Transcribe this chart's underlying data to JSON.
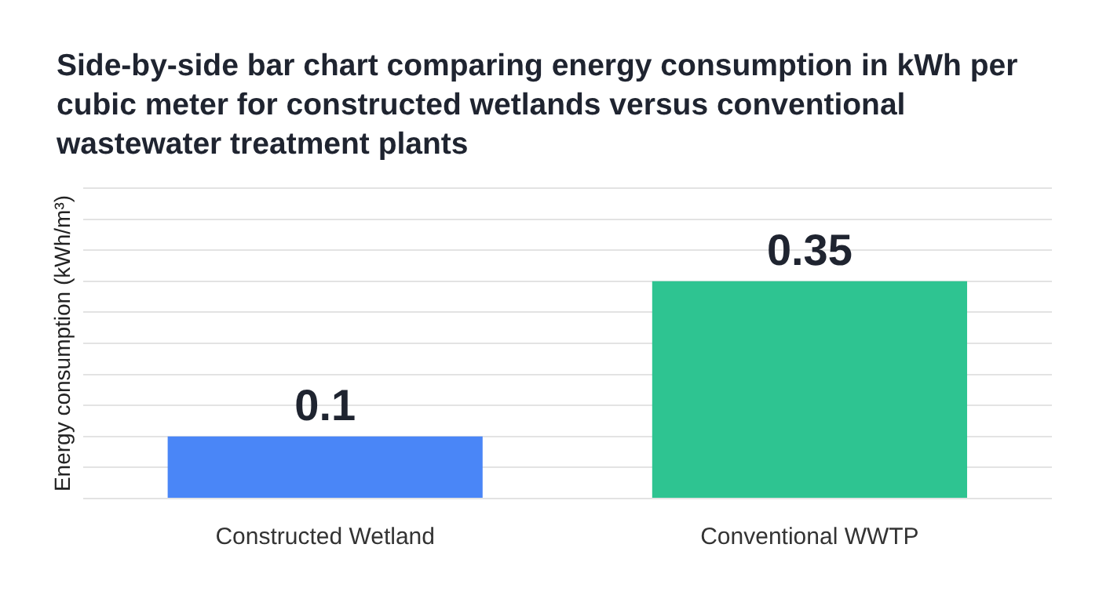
{
  "chart_data": {
    "type": "bar",
    "title": "Side-by-side bar chart comparing energy consumption in kWh per cubic meter for constructed wetlands versus conventional wastewater treatment plants",
    "ylabel": "Energy consumption (kWh/m³)",
    "categories": [
      "Constructed Wetland",
      "Conventional WWTP"
    ],
    "values": [
      0.1,
      0.35
    ],
    "colors": [
      "#4a86f7",
      "#2ec491"
    ],
    "ylim": [
      0,
      0.5
    ],
    "grid": "y",
    "tick_labels": "x",
    "data_labels": true
  }
}
